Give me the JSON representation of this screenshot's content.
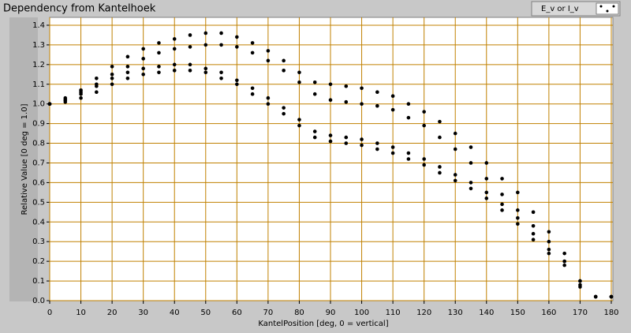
{
  "chart_data": {
    "type": "scatter",
    "title": "Dependency from Kantelhoek",
    "xlabel": "KantelPosition [deg, 0 = vertical]",
    "ylabel": "Relative Value [0 deg = 1.0]",
    "xlim": [
      0,
      180
    ],
    "ylim": [
      0,
      1.44
    ],
    "xticks": [
      0,
      10,
      20,
      30,
      40,
      50,
      60,
      70,
      80,
      90,
      100,
      110,
      120,
      130,
      140,
      150,
      160,
      170,
      180
    ],
    "yticks": [
      {
        "value": 0,
        "label": "0.0"
      },
      0.1,
      0.2,
      0.3,
      0.4,
      0.5,
      0.6,
      0.7,
      0.8,
      0.9,
      {
        "value": 1,
        "label": "1.0"
      },
      1.1,
      1.2,
      1.3,
      1.4
    ],
    "grid": true,
    "grid_color": "#c08000",
    "legend": "upper right",
    "series": [
      {
        "name": "E_v or I_v",
        "color": "#000000",
        "x": [
          0,
          5,
          10,
          15,
          20,
          25,
          30,
          35,
          40,
          45,
          50,
          55,
          60,
          65,
          70,
          75,
          80,
          85,
          90,
          95,
          100,
          105,
          110,
          115,
          120,
          125,
          130,
          135,
          140,
          145,
          150,
          155,
          160,
          165,
          170,
          175,
          180,
          0,
          5,
          10,
          15,
          20,
          25,
          30,
          35,
          40,
          45,
          50,
          55,
          60,
          65,
          70,
          75,
          80,
          85,
          90,
          95,
          100,
          105,
          110,
          115,
          120,
          125,
          130,
          135,
          140,
          145,
          150,
          155,
          160,
          165,
          170,
          175,
          180,
          0,
          5,
          10,
          15,
          20,
          25,
          30,
          35,
          40,
          45,
          50,
          55,
          60,
          65,
          70,
          75,
          80,
          85,
          90,
          95,
          100,
          105,
          110,
          115,
          120,
          125,
          130,
          135,
          140,
          145,
          150,
          155,
          160,
          165,
          170,
          175,
          180,
          0,
          5,
          10,
          15,
          20,
          25,
          30,
          35,
          40,
          45,
          50,
          55,
          60,
          65,
          70,
          75,
          80,
          85,
          90,
          95,
          100,
          105,
          110,
          115,
          120,
          125,
          130,
          135,
          140,
          145,
          150,
          155,
          160,
          165,
          170,
          175,
          180
        ],
        "values": [
          1.0,
          1.03,
          1.07,
          1.13,
          1.19,
          1.24,
          1.28,
          1.31,
          1.33,
          1.35,
          1.36,
          1.36,
          1.34,
          1.31,
          1.27,
          1.22,
          1.16,
          1.11,
          1.1,
          1.09,
          1.08,
          1.06,
          1.04,
          1.0,
          0.96,
          0.91,
          0.85,
          0.78,
          0.7,
          0.62,
          0.55,
          0.45,
          0.35,
          0.24,
          0.1,
          0.02,
          0.02,
          1.0,
          1.02,
          1.06,
          1.1,
          1.15,
          1.19,
          1.23,
          1.26,
          1.28,
          1.29,
          1.3,
          1.3,
          1.29,
          1.26,
          1.22,
          1.17,
          1.11,
          1.05,
          1.02,
          1.01,
          1.0,
          0.99,
          0.97,
          0.93,
          0.89,
          0.83,
          0.77,
          0.7,
          0.62,
          0.54,
          0.46,
          0.38,
          0.3,
          0.2,
          0.08,
          0.02,
          0.02,
          1.0,
          1.02,
          1.05,
          1.09,
          1.13,
          1.16,
          1.18,
          1.19,
          1.2,
          1.2,
          1.18,
          1.16,
          1.12,
          1.08,
          1.03,
          0.98,
          0.92,
          0.86,
          0.84,
          0.83,
          0.82,
          0.8,
          0.78,
          0.75,
          0.72,
          0.68,
          0.64,
          0.6,
          0.55,
          0.49,
          0.42,
          0.34,
          0.26,
          0.2,
          0.1,
          0.02,
          0.02,
          1.0,
          1.01,
          1.03,
          1.06,
          1.1,
          1.13,
          1.15,
          1.16,
          1.17,
          1.17,
          1.16,
          1.13,
          1.1,
          1.05,
          1.0,
          0.95,
          0.89,
          0.83,
          0.81,
          0.8,
          0.79,
          0.77,
          0.75,
          0.72,
          0.69,
          0.65,
          0.61,
          0.57,
          0.52,
          0.46,
          0.39,
          0.31,
          0.24,
          0.18,
          0.07,
          0.02,
          0.02
        ]
      }
    ]
  }
}
